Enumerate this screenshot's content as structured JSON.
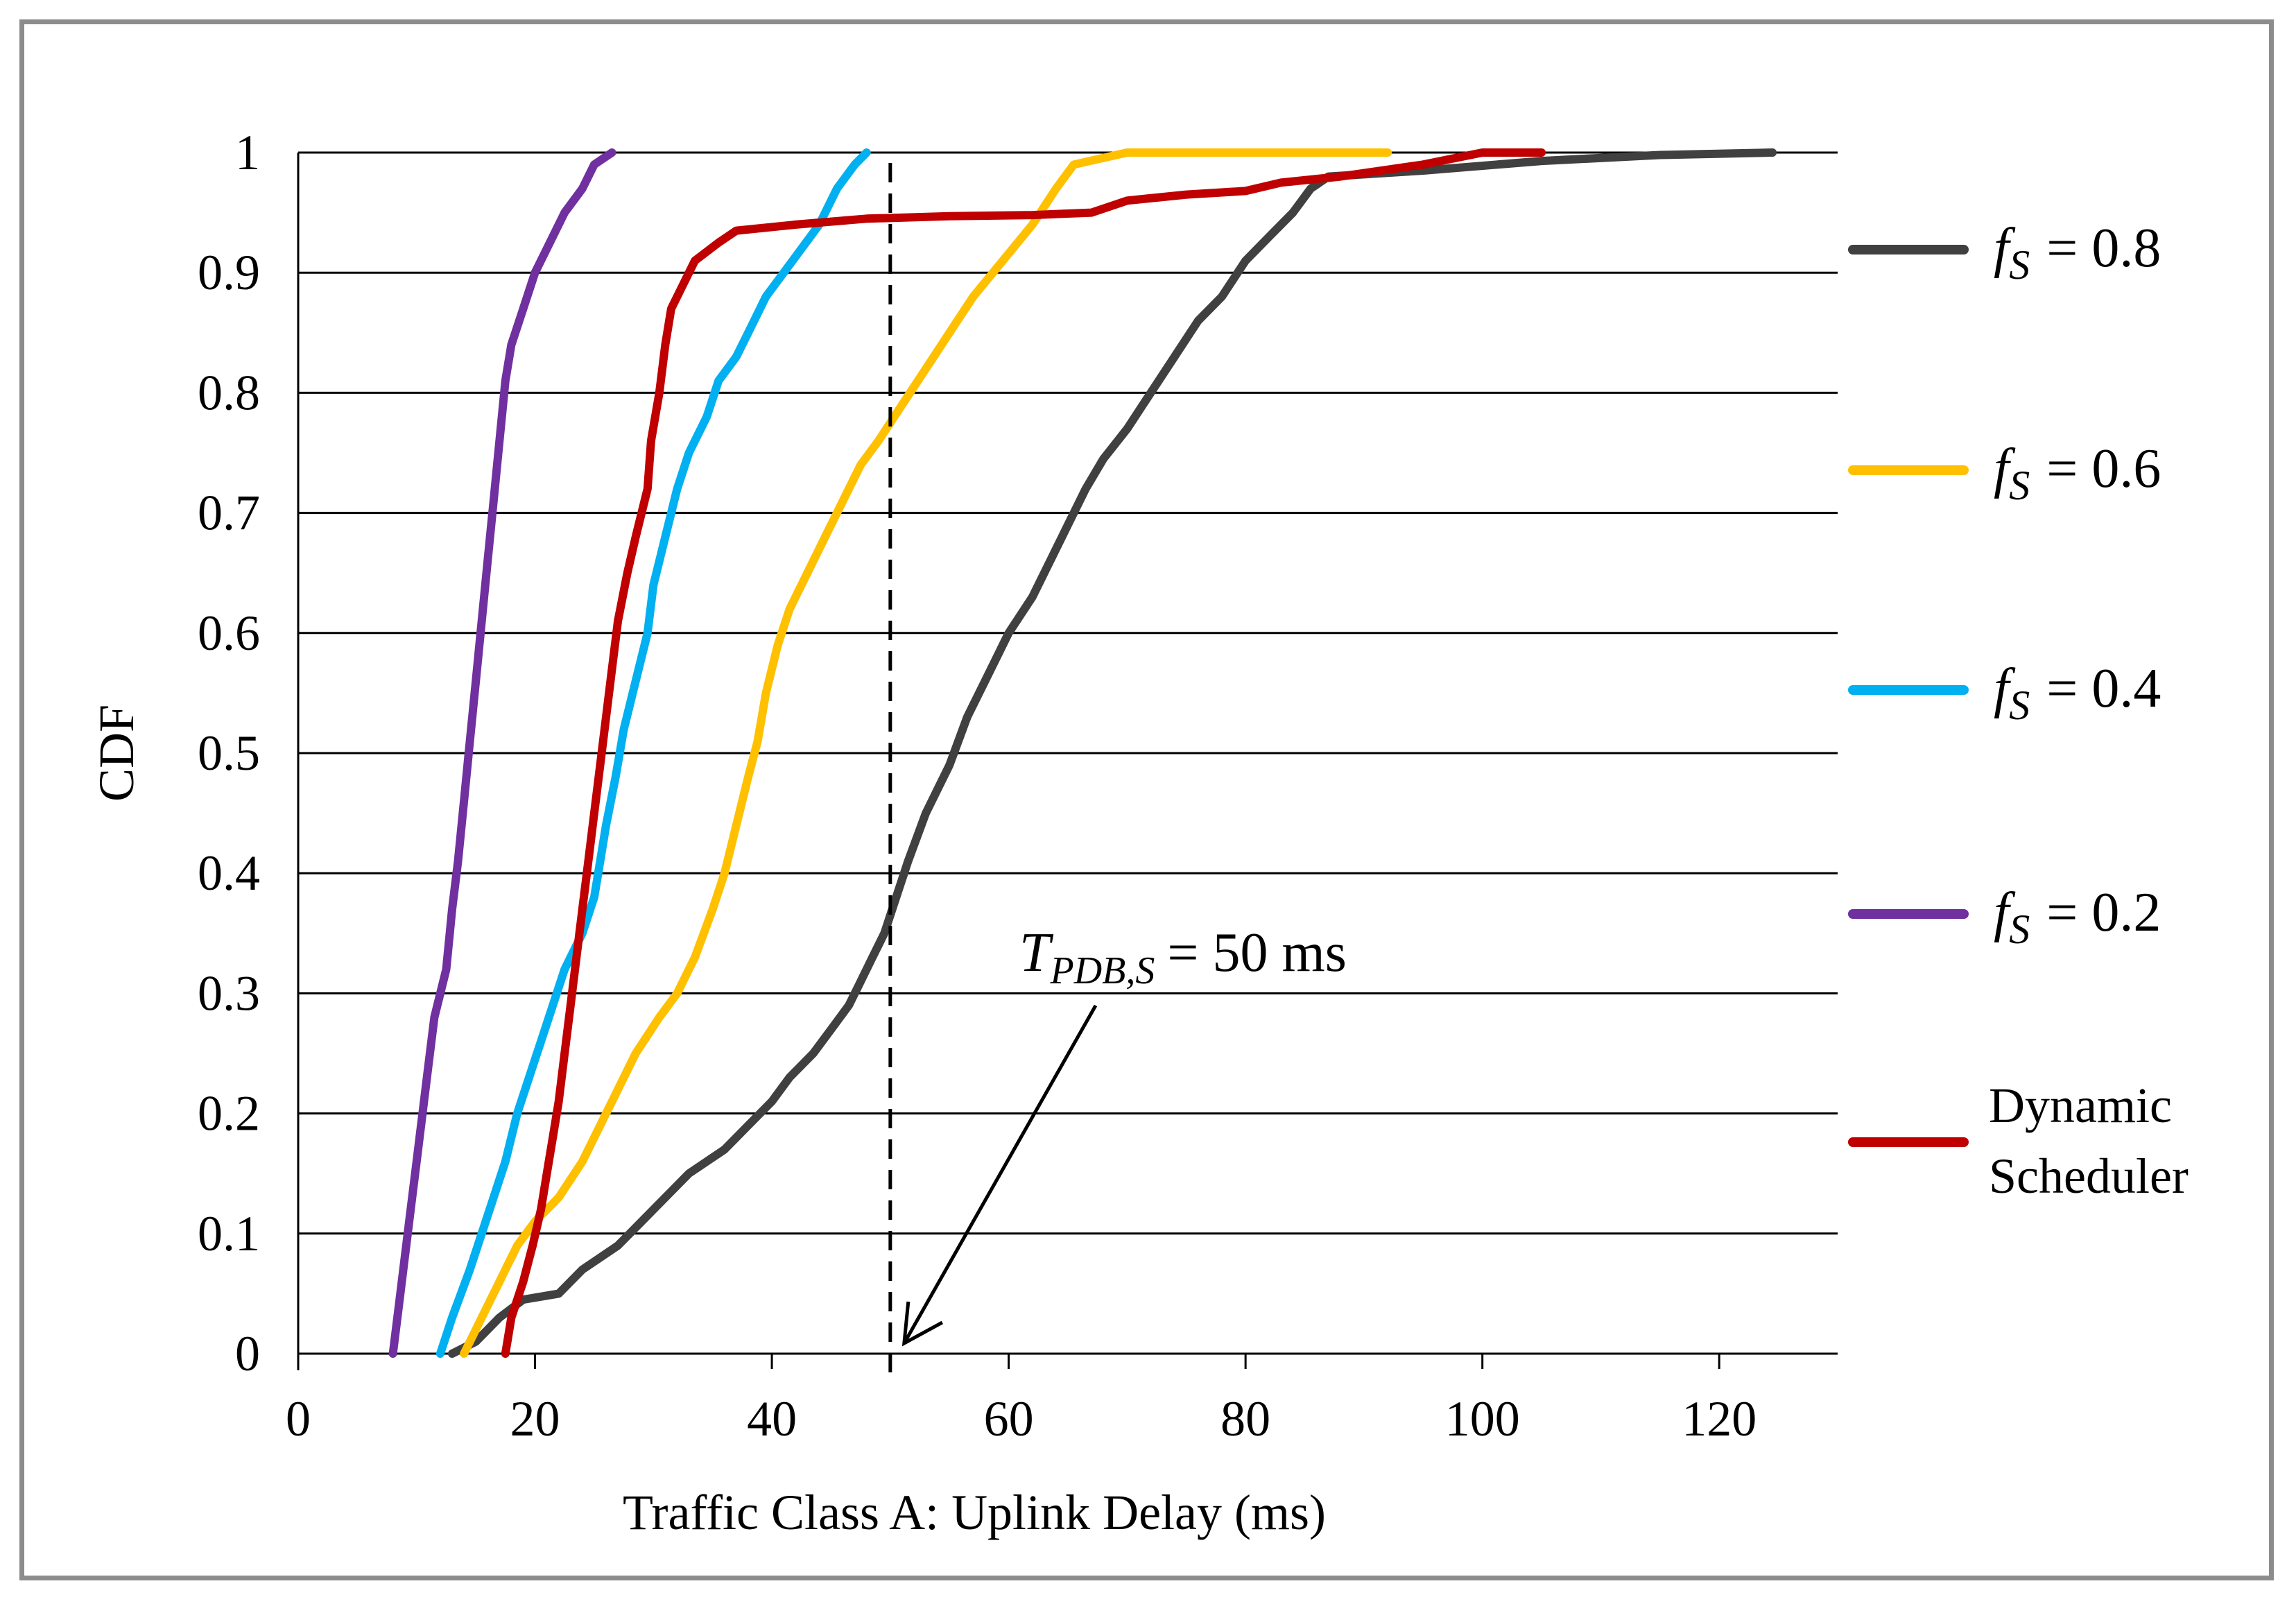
{
  "chart_data": {
    "type": "line",
    "title": "",
    "xlabel": "Traffic Class A: Uplink Delay (ms)",
    "ylabel": "CDF",
    "xlim": [
      0,
      130
    ],
    "ylim": [
      0,
      1
    ],
    "x_ticks": [
      "0",
      "20",
      "40",
      "60",
      "80",
      "100",
      "120"
    ],
    "x_tick_values": [
      0,
      20,
      40,
      60,
      80,
      100,
      120
    ],
    "y_ticks": [
      "0",
      "0.1",
      "0.2",
      "0.3",
      "0.4",
      "0.5",
      "0.6",
      "0.7",
      "0.8",
      "0.9",
      "1"
    ],
    "y_tick_values": [
      0,
      0.1,
      0.2,
      0.3,
      0.4,
      0.5,
      0.6,
      0.7,
      0.8,
      0.9,
      1.0
    ],
    "grid": "horizontal",
    "legend_position": "right",
    "series": [
      {
        "name": "f_S = 0.8",
        "legend_symbol": "f",
        "legend_subscript": "S",
        "legend_value": "= 0.8",
        "color": "#404040",
        "points": [
          [
            13,
            0
          ],
          [
            15,
            0.01
          ],
          [
            17,
            0.03
          ],
          [
            19,
            0.045
          ],
          [
            22,
            0.05
          ],
          [
            24,
            0.07
          ],
          [
            27,
            0.09
          ],
          [
            29,
            0.11
          ],
          [
            31,
            0.13
          ],
          [
            33,
            0.15
          ],
          [
            36,
            0.17
          ],
          [
            38,
            0.19
          ],
          [
            40,
            0.21
          ],
          [
            41.5,
            0.23
          ],
          [
            43.5,
            0.25
          ],
          [
            45,
            0.27
          ],
          [
            46.5,
            0.29
          ],
          [
            47.5,
            0.31
          ],
          [
            48.5,
            0.33
          ],
          [
            49.5,
            0.35
          ],
          [
            50.5,
            0.38
          ],
          [
            51.5,
            0.41
          ],
          [
            53,
            0.45
          ],
          [
            55,
            0.49
          ],
          [
            56.5,
            0.53
          ],
          [
            58,
            0.56
          ],
          [
            60,
            0.6
          ],
          [
            62,
            0.63
          ],
          [
            63.5,
            0.66
          ],
          [
            65,
            0.69
          ],
          [
            66.5,
            0.72
          ],
          [
            68,
            0.745
          ],
          [
            70,
            0.77
          ],
          [
            72,
            0.8
          ],
          [
            74,
            0.83
          ],
          [
            76,
            0.86
          ],
          [
            78,
            0.88
          ],
          [
            80,
            0.91
          ],
          [
            82,
            0.93
          ],
          [
            84,
            0.95
          ],
          [
            85.5,
            0.97
          ],
          [
            87,
            0.98
          ],
          [
            95,
            0.985
          ],
          [
            105,
            0.993
          ],
          [
            115,
            0.998
          ],
          [
            124.5,
            1.0
          ]
        ]
      },
      {
        "name": "f_S = 0.6",
        "legend_symbol": "f",
        "legend_subscript": "S",
        "legend_value": "= 0.6",
        "color": "#ffc000",
        "points": [
          [
            14,
            0
          ],
          [
            15.5,
            0.03
          ],
          [
            17,
            0.06
          ],
          [
            18.5,
            0.09
          ],
          [
            20,
            0.11
          ],
          [
            22,
            0.13
          ],
          [
            24,
            0.16
          ],
          [
            25.5,
            0.19
          ],
          [
            27,
            0.22
          ],
          [
            28.5,
            0.25
          ],
          [
            30.5,
            0.28
          ],
          [
            32,
            0.3
          ],
          [
            33.5,
            0.33
          ],
          [
            35,
            0.37
          ],
          [
            36,
            0.4
          ],
          [
            37,
            0.44
          ],
          [
            38,
            0.48
          ],
          [
            38.8,
            0.51
          ],
          [
            39.5,
            0.55
          ],
          [
            40.5,
            0.59
          ],
          [
            41.5,
            0.62
          ],
          [
            43,
            0.65
          ],
          [
            44.5,
            0.68
          ],
          [
            46,
            0.71
          ],
          [
            47.5,
            0.74
          ],
          [
            49,
            0.76
          ],
          [
            51,
            0.79
          ],
          [
            53,
            0.82
          ],
          [
            55,
            0.85
          ],
          [
            57,
            0.88
          ],
          [
            59.5,
            0.91
          ],
          [
            62,
            0.94
          ],
          [
            64,
            0.97
          ],
          [
            65.5,
            0.99
          ],
          [
            70,
            1.0
          ],
          [
            92,
            1.0
          ]
        ]
      },
      {
        "name": "f_S = 0.4",
        "legend_symbol": "f",
        "legend_subscript": "S",
        "legend_value": "= 0.4",
        "color": "#00b0f0",
        "points": [
          [
            12,
            0
          ],
          [
            13,
            0.03
          ],
          [
            14.5,
            0.07
          ],
          [
            15.5,
            0.1
          ],
          [
            16.5,
            0.13
          ],
          [
            17.5,
            0.16
          ],
          [
            18.5,
            0.2
          ],
          [
            19.5,
            0.23
          ],
          [
            20.5,
            0.26
          ],
          [
            21.5,
            0.29
          ],
          [
            22.5,
            0.32
          ],
          [
            24,
            0.35
          ],
          [
            25,
            0.38
          ],
          [
            25.5,
            0.41
          ],
          [
            26,
            0.44
          ],
          [
            26.8,
            0.48
          ],
          [
            27.5,
            0.52
          ],
          [
            28.5,
            0.56
          ],
          [
            29.5,
            0.6
          ],
          [
            30,
            0.64
          ],
          [
            31,
            0.68
          ],
          [
            32,
            0.72
          ],
          [
            33,
            0.75
          ],
          [
            34.5,
            0.78
          ],
          [
            35.5,
            0.81
          ],
          [
            37,
            0.83
          ],
          [
            38.5,
            0.86
          ],
          [
            39.5,
            0.88
          ],
          [
            41,
            0.9
          ],
          [
            42.5,
            0.92
          ],
          [
            44,
            0.94
          ],
          [
            45.5,
            0.97
          ],
          [
            47,
            0.99
          ],
          [
            48,
            1.0
          ]
        ]
      },
      {
        "name": "f_S = 0.2",
        "legend_symbol": "f",
        "legend_subscript": "S",
        "legend_value": "= 0.2",
        "color": "#7030a0",
        "points": [
          [
            8,
            0
          ],
          [
            8.5,
            0.04
          ],
          [
            9,
            0.08
          ],
          [
            9.5,
            0.12
          ],
          [
            10,
            0.16
          ],
          [
            10.5,
            0.2
          ],
          [
            11,
            0.24
          ],
          [
            11.5,
            0.28
          ],
          [
            12.5,
            0.32
          ],
          [
            13,
            0.37
          ],
          [
            13.5,
            0.41
          ],
          [
            14,
            0.46
          ],
          [
            14.5,
            0.51
          ],
          [
            15,
            0.56
          ],
          [
            15.5,
            0.61
          ],
          [
            16,
            0.66
          ],
          [
            16.5,
            0.71
          ],
          [
            17,
            0.76
          ],
          [
            17.5,
            0.81
          ],
          [
            18,
            0.84
          ],
          [
            19,
            0.87
          ],
          [
            20,
            0.9
          ],
          [
            21,
            0.92
          ],
          [
            22.5,
            0.95
          ],
          [
            24,
            0.97
          ],
          [
            25,
            0.99
          ],
          [
            26.5,
            1.0
          ]
        ]
      },
      {
        "name": "Dynamic Scheduler",
        "legend_line1": "Dynamic",
        "legend_line2": "Scheduler",
        "color": "#c00000",
        "points": [
          [
            17.5,
            0
          ],
          [
            18,
            0.03
          ],
          [
            19,
            0.06
          ],
          [
            19.8,
            0.09
          ],
          [
            20.5,
            0.12
          ],
          [
            21,
            0.15
          ],
          [
            21.5,
            0.18
          ],
          [
            22,
            0.21
          ],
          [
            22.5,
            0.25
          ],
          [
            23,
            0.29
          ],
          [
            23.5,
            0.33
          ],
          [
            24,
            0.37
          ],
          [
            24.5,
            0.41
          ],
          [
            25,
            0.45
          ],
          [
            25.5,
            0.49
          ],
          [
            26,
            0.53
          ],
          [
            26.5,
            0.57
          ],
          [
            27,
            0.61
          ],
          [
            27.8,
            0.65
          ],
          [
            28.5,
            0.68
          ],
          [
            29.5,
            0.72
          ],
          [
            29.8,
            0.76
          ],
          [
            30.5,
            0.8
          ],
          [
            31,
            0.84
          ],
          [
            31.5,
            0.87
          ],
          [
            32.5,
            0.89
          ],
          [
            33.5,
            0.91
          ],
          [
            35.5,
            0.925
          ],
          [
            37,
            0.935
          ],
          [
            42,
            0.94
          ],
          [
            48,
            0.945
          ],
          [
            55,
            0.947
          ],
          [
            62,
            0.948
          ],
          [
            67,
            0.95
          ],
          [
            70,
            0.96
          ],
          [
            75,
            0.965
          ],
          [
            80,
            0.968
          ],
          [
            83,
            0.975
          ],
          [
            88,
            0.98
          ],
          [
            95,
            0.99
          ],
          [
            100,
            1.0
          ],
          [
            105,
            1.0
          ]
        ]
      }
    ],
    "annotations": [
      {
        "type": "vline",
        "x": 50,
        "style": "dashed",
        "label_symbol": "T",
        "label_subscript": "PDB,S",
        "label_value": "= 50 ms",
        "arrow_target": [
          50,
          0
        ]
      }
    ]
  }
}
